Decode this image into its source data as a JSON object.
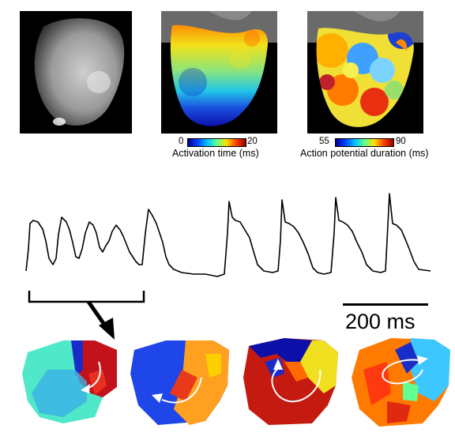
{
  "panels": [
    {
      "id": "grayscale_image"
    },
    {
      "id": "activation_map"
    },
    {
      "id": "apd_map"
    }
  ],
  "colorbars": {
    "activation": {
      "min": "0",
      "max": "20",
      "title": "Activation time (ms)"
    },
    "apd": {
      "min": "55",
      "max": "90",
      "title": "Action potential duration (ms)"
    }
  },
  "scale_bar": {
    "label": "200 ms"
  },
  "reentry_maps": [
    {
      "id": "map1"
    },
    {
      "id": "map2"
    },
    {
      "id": "map3"
    },
    {
      "id": "map4"
    }
  ]
}
